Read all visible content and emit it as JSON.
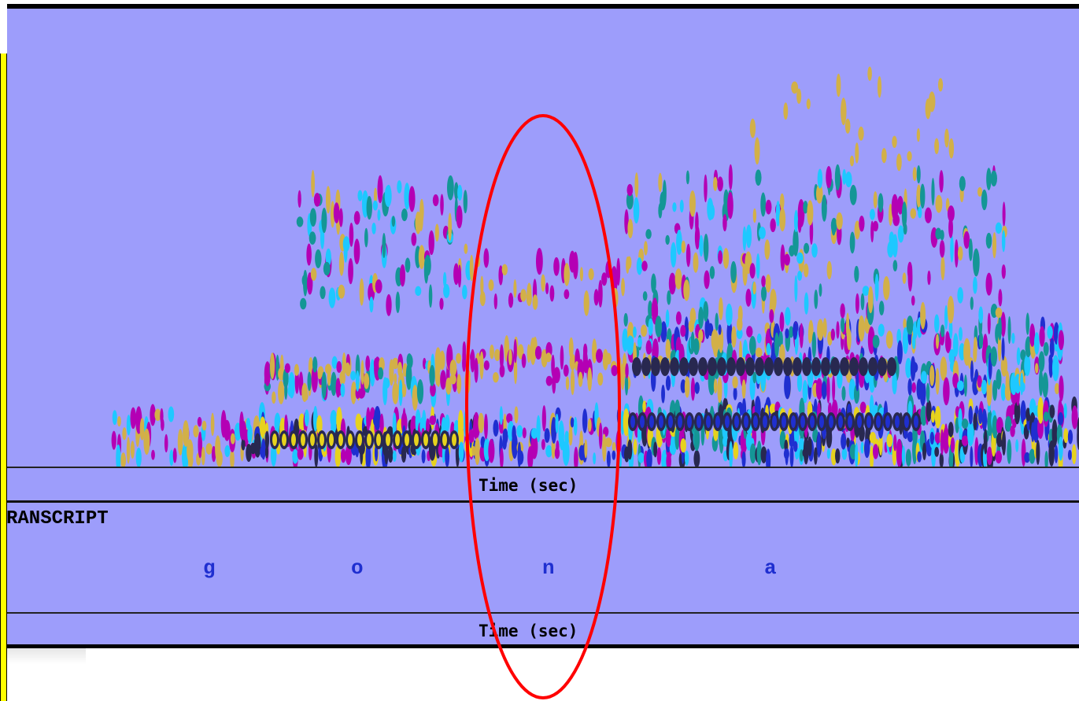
{
  "spectrogram": {
    "time_axis_label": "Time (sec)"
  },
  "transcript": {
    "label": "RANSCRIPT",
    "phones": [
      "g",
      "o",
      "n",
      "a"
    ],
    "time_axis_label": "Time (sec)"
  },
  "annotation": {
    "shape": "ellipse",
    "color": "#ff0000",
    "highlights_phone": "n"
  },
  "colors": {
    "panel_background": "#9d9dfb",
    "frame": "#000000",
    "left_bar": "#ffff00",
    "phone_text": "#1f2fd0",
    "spectral_energy": [
      "#d2b048",
      "#b400b4",
      "#1ec8ff",
      "#1f2fd0",
      "#149696",
      "#e6d21e",
      "#282850"
    ]
  }
}
